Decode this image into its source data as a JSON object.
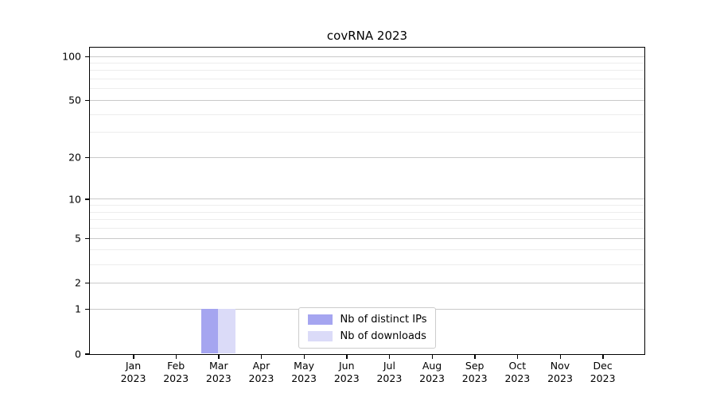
{
  "chart_data": {
    "type": "bar",
    "title": "covRNA 2023",
    "categories": [
      "Jan 2023",
      "Feb 2023",
      "Mar 2023",
      "Apr 2023",
      "May 2023",
      "Jun 2023",
      "Jul 2023",
      "Aug 2023",
      "Sep 2023",
      "Oct 2023",
      "Nov 2023",
      "Dec 2023"
    ],
    "series": [
      {
        "name": "Nb of distinct IPs",
        "color": "#a5a5f0",
        "values": [
          0,
          0,
          1,
          0,
          0,
          0,
          0,
          0,
          0,
          0,
          0,
          0
        ]
      },
      {
        "name": "Nb of downloads",
        "color": "#dbdbf8",
        "values": [
          0,
          0,
          1,
          0,
          0,
          0,
          0,
          0,
          0,
          0,
          0,
          0
        ]
      }
    ],
    "xlabel": "",
    "ylabel": "",
    "yscale": "log1p",
    "ylim": [
      0,
      114
    ],
    "y_tick_labels": [
      0,
      1,
      2,
      5,
      10,
      20,
      50,
      100
    ],
    "y_major_gridlines": [
      1,
      2,
      5,
      10,
      20,
      50,
      100
    ],
    "y_minor_gridlines": [
      3,
      4,
      6,
      7,
      8,
      9,
      30,
      40,
      60,
      70,
      80,
      90
    ],
    "grid": "horizontal",
    "legend_position": "lower center"
  },
  "colors": {
    "background": "#ffffff",
    "spine": "#000000",
    "grid_major": "#c9c9c9",
    "grid_minor": "#ededed",
    "legend_border": "#cccccc",
    "text": "#000000"
  }
}
